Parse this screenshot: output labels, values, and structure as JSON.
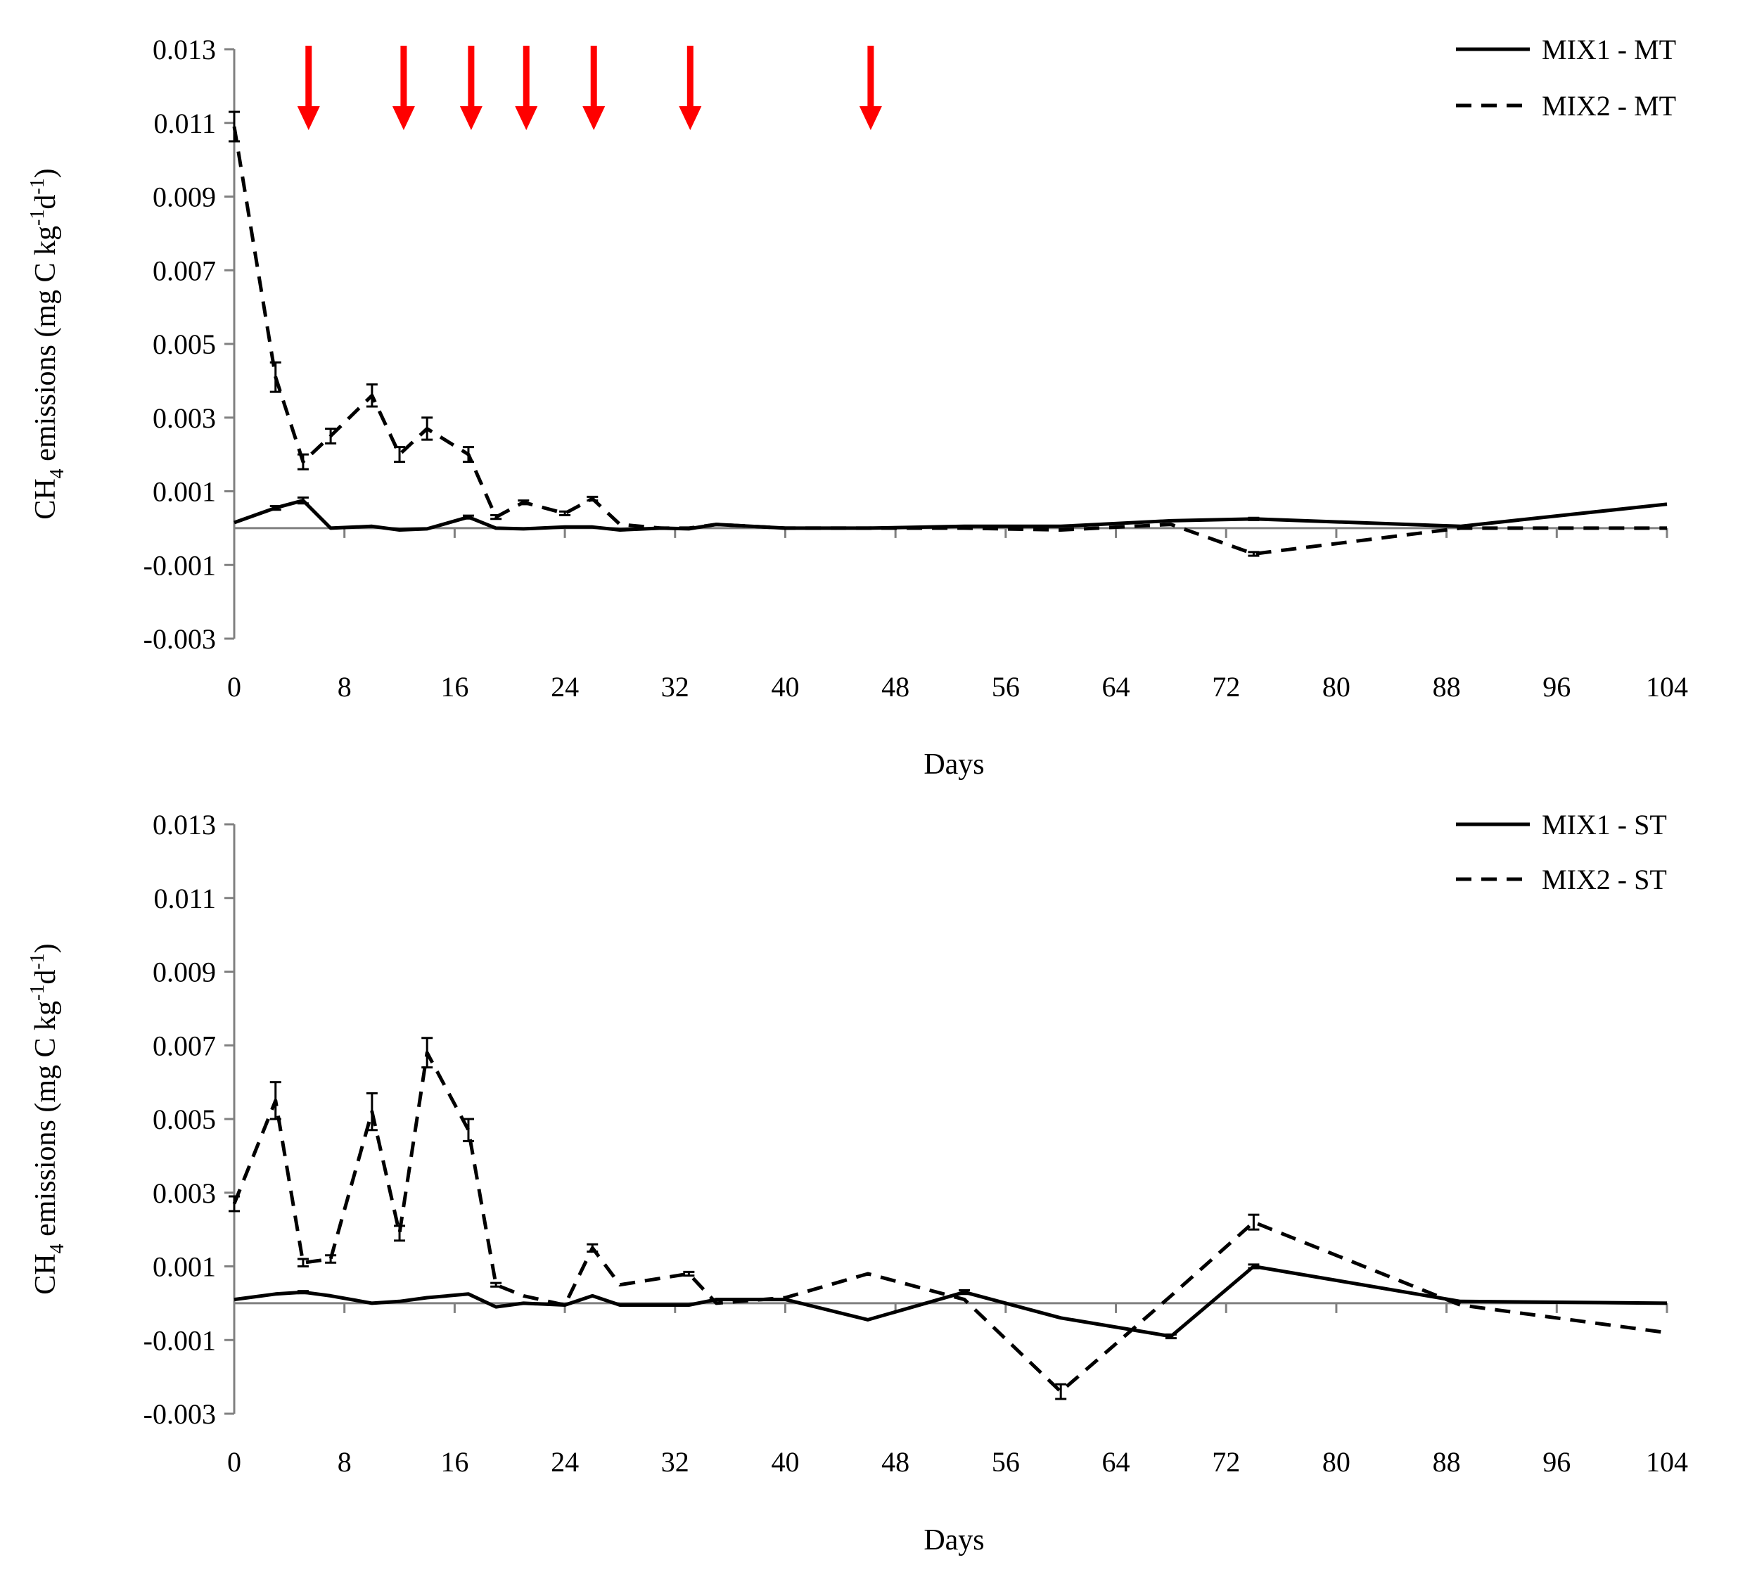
{
  "chart_data": [
    {
      "type": "line",
      "title": "",
      "xlabel": "Days",
      "ylabel_main": "CH",
      "ylabel_sub": "4",
      "ylabel_rest": " emissions (mg C kg",
      "ylabel_sup1": "-1",
      "ylabel_mid": "d",
      "ylabel_sup2": "-1",
      "ylabel_end": ")",
      "xlim": [
        0,
        104
      ],
      "ylim": [
        -0.003,
        0.013
      ],
      "x_ticks": [
        "0",
        "8",
        "16",
        "24",
        "32",
        "40",
        "48",
        "56",
        "64",
        "72",
        "80",
        "88",
        "96",
        "104"
      ],
      "y_ticks": [
        "0.013",
        "0.011",
        "0.009",
        "0.007",
        "0.005",
        "0.003",
        "0.001",
        "-0.001",
        "-0.003"
      ],
      "legend_position": "top-right",
      "arrows_at_days": [
        5.4,
        12.3,
        17.2,
        21.2,
        26.1,
        33.1,
        46.2
      ],
      "series": [
        {
          "name": "MIX1 - MT",
          "style": "solid",
          "x": [
            0,
            3,
            5,
            7,
            10,
            12,
            14,
            17,
            19,
            21,
            24,
            26,
            28,
            31,
            33,
            35,
            40,
            46,
            53,
            60,
            68,
            74,
            89,
            104
          ],
          "y": [
            0.00015,
            0.00055,
            0.00075,
            0.0,
            5e-05,
            -5e-05,
            -2e-05,
            0.0003,
            0.0,
            -2e-05,
            3e-05,
            3e-05,
            -5e-05,
            0.0,
            -2e-05,
            0.0001,
            0.0,
            0.0,
            5e-05,
            5e-05,
            0.0002,
            0.00025,
            5e-05,
            0.00065
          ],
          "err": [
            0,
            5e-05,
            8e-05,
            0,
            0,
            0,
            0,
            4e-05,
            0,
            0,
            0,
            0,
            0,
            0,
            0,
            0,
            0,
            0,
            0,
            0,
            0,
            3e-05,
            0,
            0
          ]
        },
        {
          "name": "MIX2 - MT",
          "style": "dashed",
          "x": [
            0,
            3,
            5,
            7,
            10,
            12,
            14,
            17,
            19,
            21,
            24,
            26,
            28,
            31,
            33,
            35,
            40,
            46,
            53,
            60,
            68,
            74,
            89,
            104
          ],
          "y": [
            0.0109,
            0.0041,
            0.0018,
            0.0025,
            0.0036,
            0.002,
            0.0027,
            0.002,
            0.0003,
            0.0007,
            0.0004,
            0.0008,
            0.0001,
            0.0,
            0.0,
            0.0001,
            0.0,
            0.0,
            0.0,
            -5e-05,
            0.0001,
            -0.0007,
            0.0,
            0.0
          ],
          "err": [
            0.0004,
            0.0004,
            0.0002,
            0.0002,
            0.0003,
            0.0002,
            0.0003,
            0.0002,
            5e-05,
            5e-05,
            5e-05,
            5e-05,
            0,
            0,
            0,
            0,
            0,
            0,
            0,
            0,
            0,
            5e-05,
            0,
            0
          ]
        }
      ]
    },
    {
      "type": "line",
      "title": "",
      "xlabel": "Days",
      "ylabel_main": "CH",
      "ylabel_sub": "4",
      "ylabel_rest": " emissions (mg C kg",
      "ylabel_sup1": "-1",
      "ylabel_mid": "d",
      "ylabel_sup2": "-1",
      "ylabel_end": ")",
      "xlim": [
        0,
        104
      ],
      "ylim": [
        -0.003,
        0.013
      ],
      "x_ticks": [
        "0",
        "8",
        "16",
        "24",
        "32",
        "40",
        "48",
        "56",
        "64",
        "72",
        "80",
        "88",
        "96",
        "104"
      ],
      "y_ticks": [
        "0.013",
        "0.011",
        "0.009",
        "0.007",
        "0.005",
        "0.003",
        "0.001",
        "-0.001",
        "-0.003"
      ],
      "legend_position": "top-right",
      "arrows_at_days": [],
      "series": [
        {
          "name": "MIX1 - ST",
          "style": "solid",
          "x": [
            0,
            3,
            5,
            7,
            10,
            12,
            14,
            17,
            19,
            21,
            24,
            26,
            28,
            33,
            35,
            40,
            46,
            53,
            60,
            68,
            74,
            89,
            104
          ],
          "y": [
            0.0001,
            0.00025,
            0.0003,
            0.0002,
            0.0,
            5e-05,
            0.00015,
            0.00025,
            -0.0001,
            0.0,
            -5e-05,
            0.0002,
            -5e-05,
            -5e-05,
            0.0001,
            0.0001,
            -0.00045,
            0.0003,
            -0.0004,
            -0.0009,
            0.001,
            5e-05,
            0.0
          ],
          "err": [
            0,
            0,
            3e-05,
            0,
            0,
            0,
            0,
            0,
            0,
            0,
            0,
            0,
            0,
            0,
            0,
            0,
            0,
            5e-05,
            0,
            5e-05,
            5e-05,
            0,
            0
          ]
        },
        {
          "name": "MIX2 - ST",
          "style": "dashed",
          "x": [
            0,
            3,
            5,
            7,
            10,
            12,
            14,
            17,
            19,
            21,
            24,
            26,
            28,
            33,
            35,
            40,
            46,
            53,
            60,
            68,
            74,
            89,
            104
          ],
          "y": [
            0.0027,
            0.0055,
            0.0011,
            0.0012,
            0.0052,
            0.0019,
            0.0068,
            0.0047,
            0.0005,
            0.0002,
            -5e-05,
            0.0015,
            0.0005,
            0.0008,
            0.0,
            0.00015,
            0.0008,
            0.0001,
            -0.0024,
            0.0002,
            0.0022,
            -5e-05,
            -0.0008
          ],
          "err": [
            0.0002,
            0.0005,
            0.0001,
            0.0001,
            0.0005,
            0.0002,
            0.0004,
            0.0003,
            5e-05,
            0,
            0,
            0.0001,
            0,
            5e-05,
            0,
            0,
            0,
            0,
            0.0002,
            0,
            0.0002,
            0,
            0
          ]
        }
      ]
    }
  ]
}
